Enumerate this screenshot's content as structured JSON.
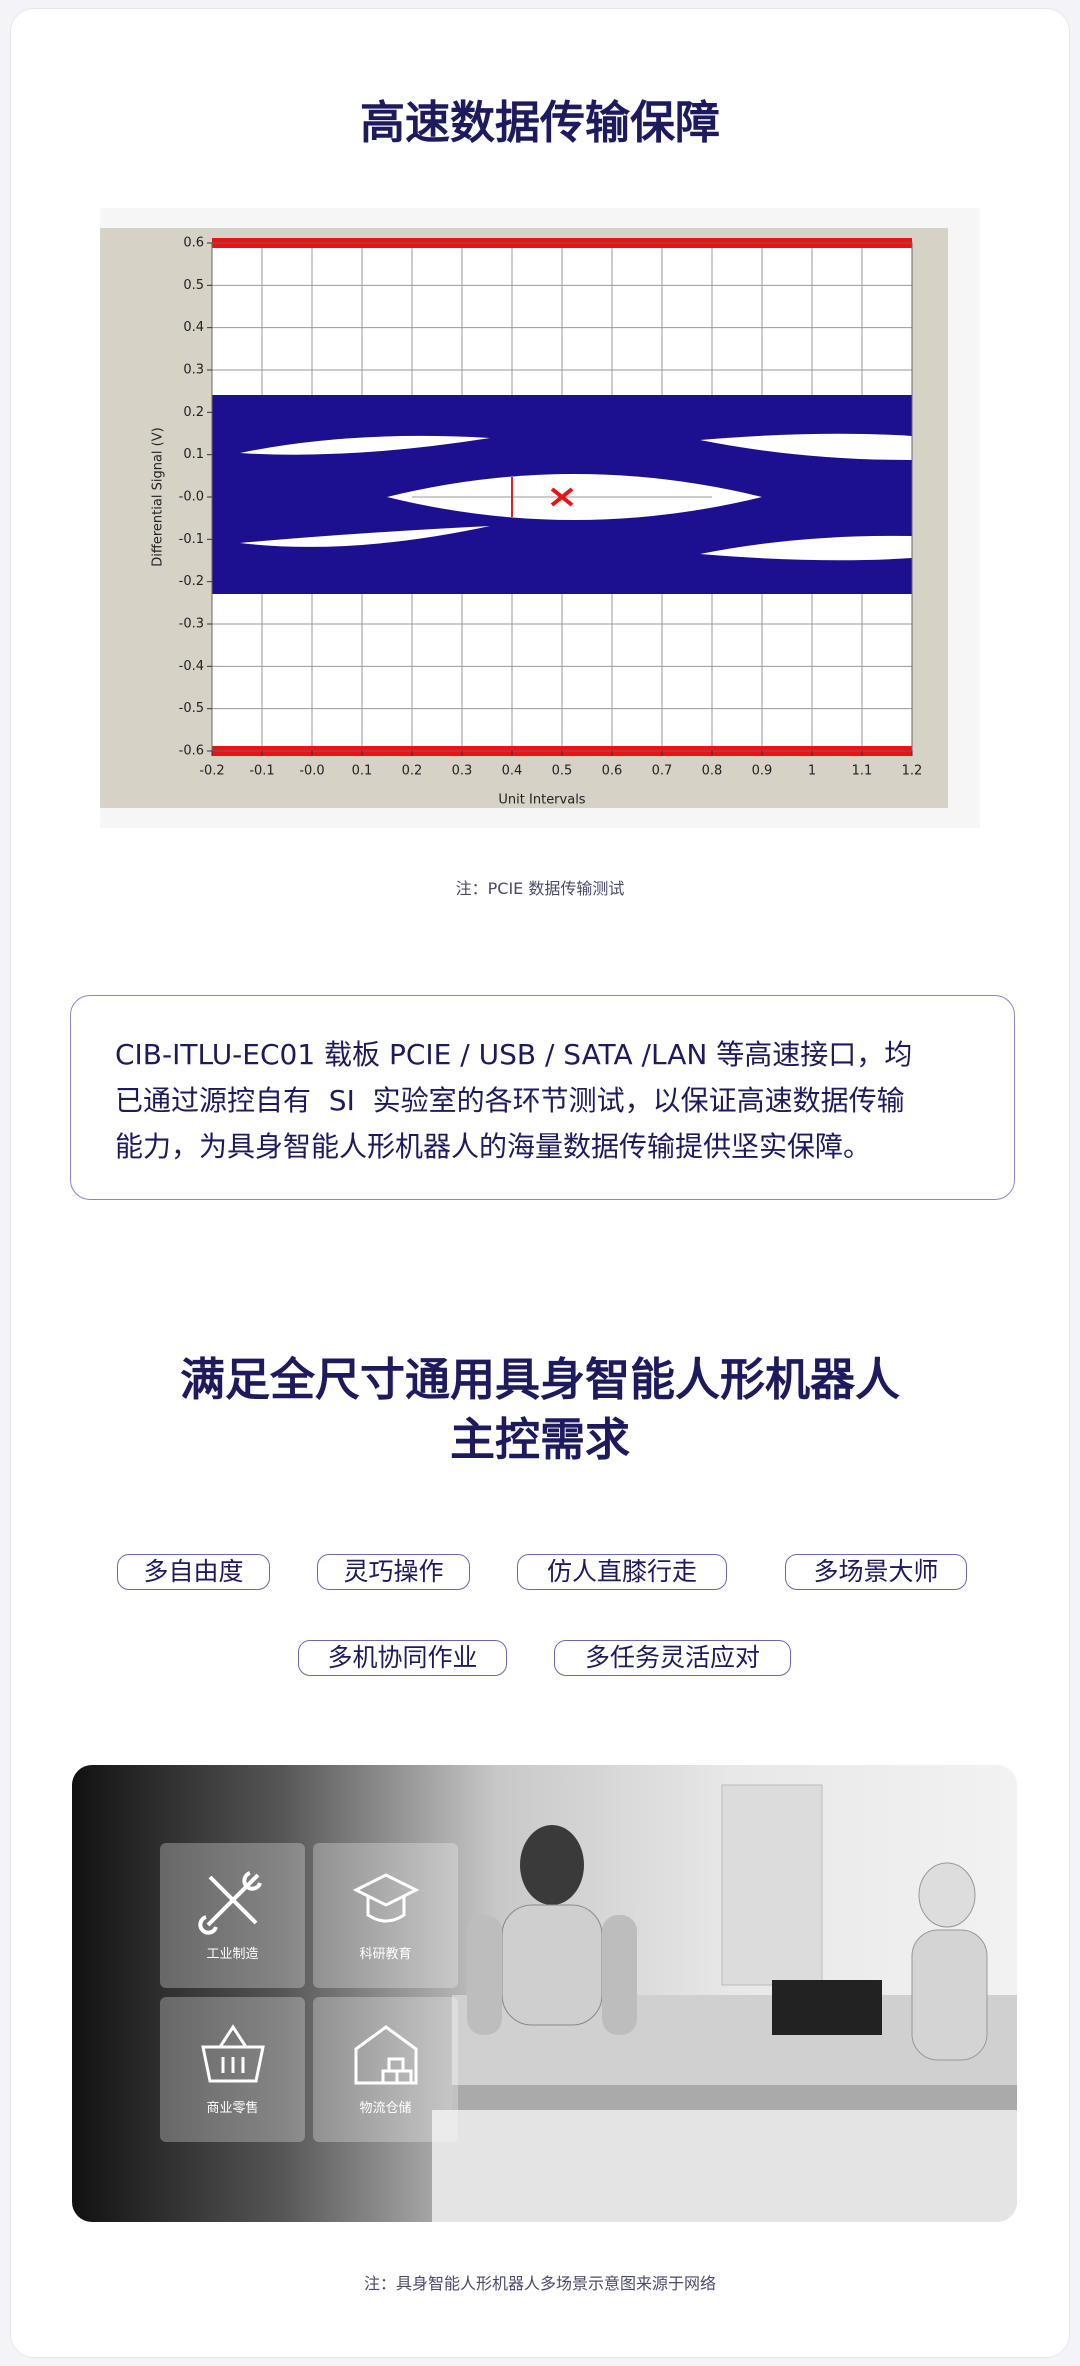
{
  "header": {
    "title": "高速数据传输保障"
  },
  "chart_data": {
    "type": "eye-diagram",
    "xlabel": "Unit Intervals",
    "ylabel": "Differential Signal (V)",
    "xlim": [
      -0.2,
      1.2
    ],
    "ylim": [
      -0.6,
      0.6
    ],
    "xticks": [
      -0.2,
      -0.1,
      {
        "value": 0,
        "label": "-0.0"
      },
      0.1,
      0.2,
      0.3,
      0.4,
      0.5,
      0.6,
      0.7,
      0.8,
      0.9,
      1.0,
      1.1,
      1.2
    ],
    "yticks": [
      0.6,
      0.5,
      0.4,
      0.3,
      0.2,
      0.1,
      {
        "value": 0,
        "label": "-0.0"
      },
      -0.1,
      -0.2,
      -0.3,
      -0.4,
      -0.5,
      -0.6
    ],
    "grid": true
  },
  "figure_caption": "注：PCIE 数据传输测试",
  "description": {
    "lines": [
      "CIB-ITLU-EC01 载板 PCIE / USB / SATA /LAN 等高速接口，均",
      "已通过源控自有  SI  实验室的各环节测试，以保证高速数据传输",
      "能力，为具身智能人形机器人的海量数据传输提供坚实保障。"
    ]
  },
  "section": {
    "title_lines": [
      "满足全尺寸通用具身智能人形机器人",
      "主控需求"
    ],
    "tags": [
      "多自由度",
      "灵巧操作",
      "仿人直膝行走",
      "多场景大师",
      "多机协同作业",
      "多任务灵活应对"
    ]
  },
  "scene": {
    "tiles": [
      "工业制造",
      "科研教育",
      "商业零售",
      "物流仓储"
    ]
  },
  "scene_caption": "注：具身智能人形机器人多场景示意图来源于网络"
}
